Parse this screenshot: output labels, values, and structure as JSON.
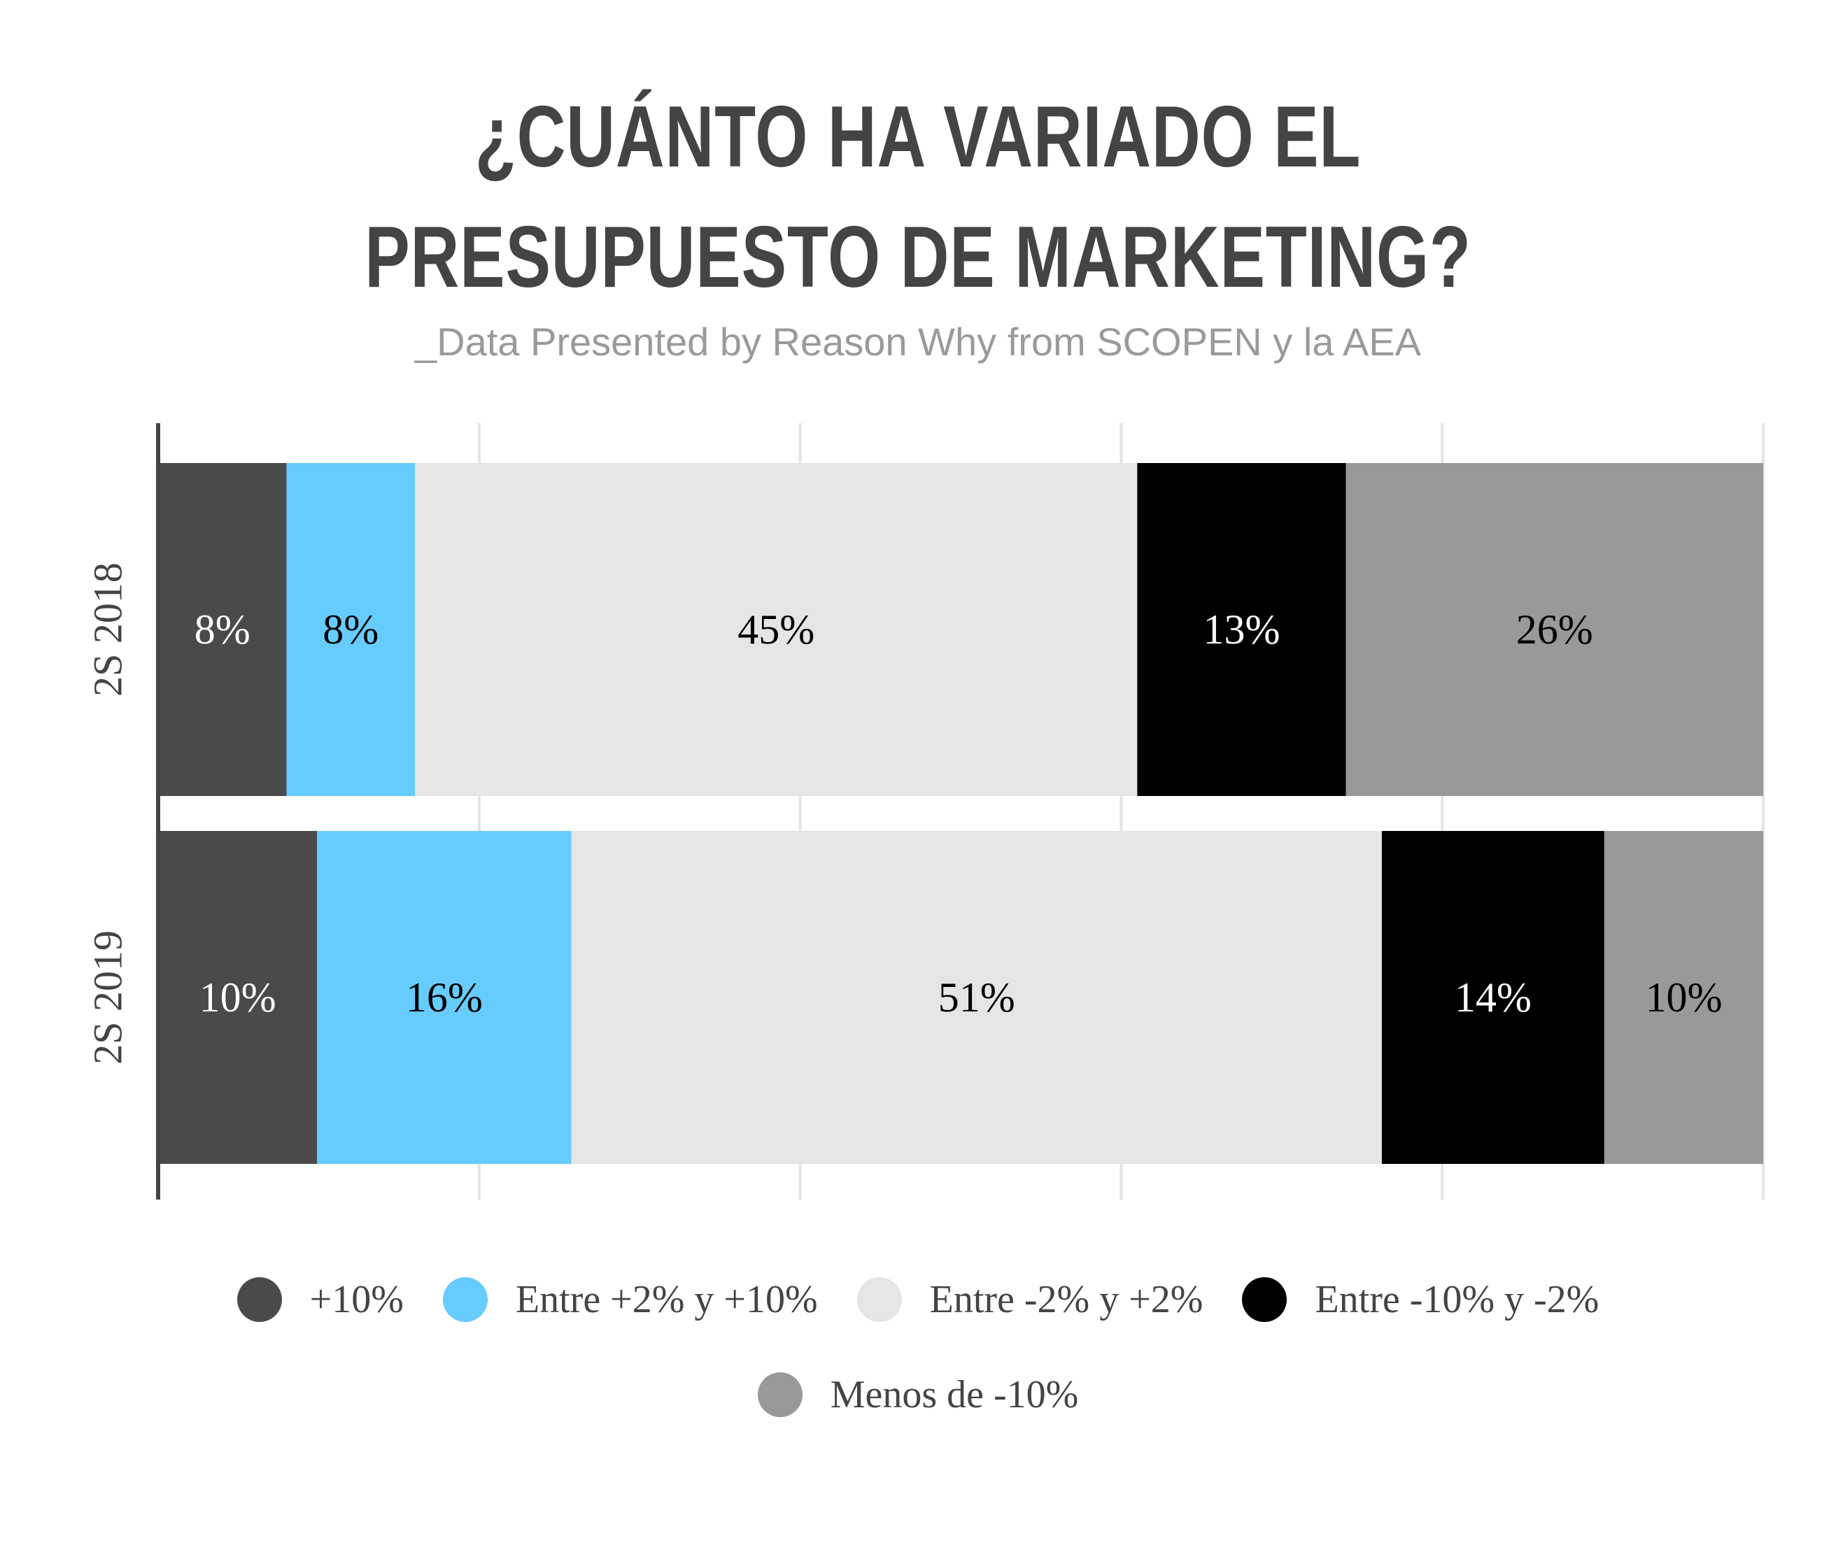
{
  "chart_data": {
    "type": "bar",
    "orientation": "horizontal",
    "stacked": true,
    "title": "¿CUÁNTO HA VARIADO EL PRESUPUESTO DE MARKETING?",
    "title_lines": [
      "¿CUÁNTO HA VARIADO EL",
      "PRESUPUESTO DE MARKETING?"
    ],
    "subtitle": "_Data Presented by Reason Why from SCOPEN y la AEA",
    "categories": [
      "2S 2018",
      "2S 2019"
    ],
    "series": [
      {
        "name": "+10%",
        "color": "#4a4a4a",
        "label_color": "#ffffff",
        "values": [
          8,
          10
        ]
      },
      {
        "name": "Entre +2% y +10%",
        "color": "#66ccff",
        "label_color": "#000000",
        "values": [
          8,
          16
        ]
      },
      {
        "name": "Entre -2% y +2%",
        "color": "#e5e5e5",
        "label_color": "#000000",
        "values": [
          45,
          51
        ]
      },
      {
        "name": "Entre -10% y -2%",
        "color": "#000000",
        "label_color": "#ffffff",
        "values": [
          13,
          14
        ]
      },
      {
        "name": "Menos de -10%",
        "color": "#999999",
        "label_color": "#000000",
        "values": [
          26,
          10
        ]
      }
    ],
    "data_labels": [
      [
        "8%",
        "8%",
        "45%",
        "13%",
        "26%"
      ],
      [
        "10%",
        "16%",
        "51%",
        "14%",
        "10%"
      ]
    ],
    "xlim": [
      0,
      100
    ],
    "xlabel": "",
    "ylabel": "",
    "grid": true,
    "legend_position": "bottom"
  }
}
